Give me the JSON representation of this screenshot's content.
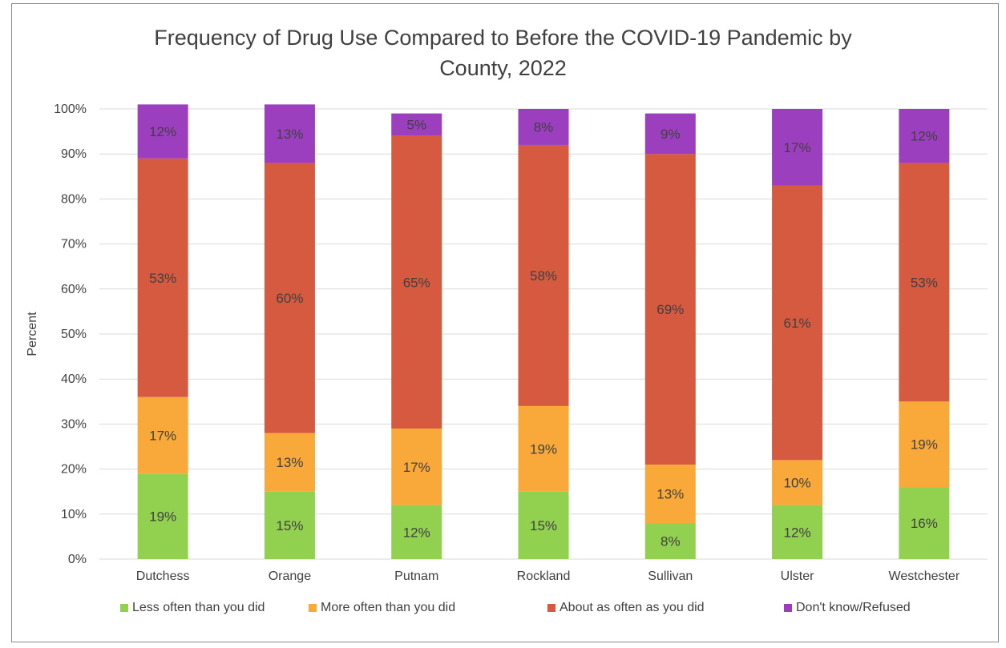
{
  "chart_data": {
    "type": "bar",
    "stacked": true,
    "title": "Frequency of Drug Use Compared to Before the COVID-19 Pandemic by County, 2022",
    "title_lines": [
      "Frequency of Drug Use Compared to Before the COVID-19 Pandemic by",
      "County, 2022"
    ],
    "ylabel": "Percent",
    "xlabel": "",
    "ylim": [
      0,
      100
    ],
    "yticks": [
      "0%",
      "10%",
      "20%",
      "30%",
      "40%",
      "50%",
      "60%",
      "70%",
      "80%",
      "90%",
      "100%"
    ],
    "grid": true,
    "legend_position": "bottom",
    "categories": [
      "Dutchess",
      "Orange",
      "Putnam",
      "Rockland",
      "Sullivan",
      "Ulster",
      "Westchester"
    ],
    "series": [
      {
        "name": "Less often than you did",
        "color": "#92d050",
        "values": [
          19,
          15,
          12,
          15,
          8,
          12,
          16
        ],
        "labels": [
          "19%",
          "15%",
          "12%",
          "15%",
          "8%",
          "12%",
          "16%"
        ]
      },
      {
        "name": "More often than you did",
        "color": "#f9a93a",
        "values": [
          17,
          13,
          17,
          19,
          13,
          10,
          19
        ],
        "labels": [
          "17%",
          "13%",
          "17%",
          "19%",
          "13%",
          "10%",
          "19%"
        ]
      },
      {
        "name": "About as often as you did",
        "color": "#d55a3f",
        "values": [
          53,
          60,
          65,
          58,
          69,
          61,
          53
        ],
        "labels": [
          "53%",
          "60%",
          "65%",
          "58%",
          "69%",
          "61%",
          "53%"
        ]
      },
      {
        "name": "Don't know/Refused",
        "color": "#9b3fbf",
        "values": [
          12,
          13,
          5,
          8,
          9,
          17,
          12
        ],
        "labels": [
          "12%",
          "13%",
          "5%",
          "8%",
          "9%",
          "17%",
          "12%"
        ]
      }
    ]
  }
}
